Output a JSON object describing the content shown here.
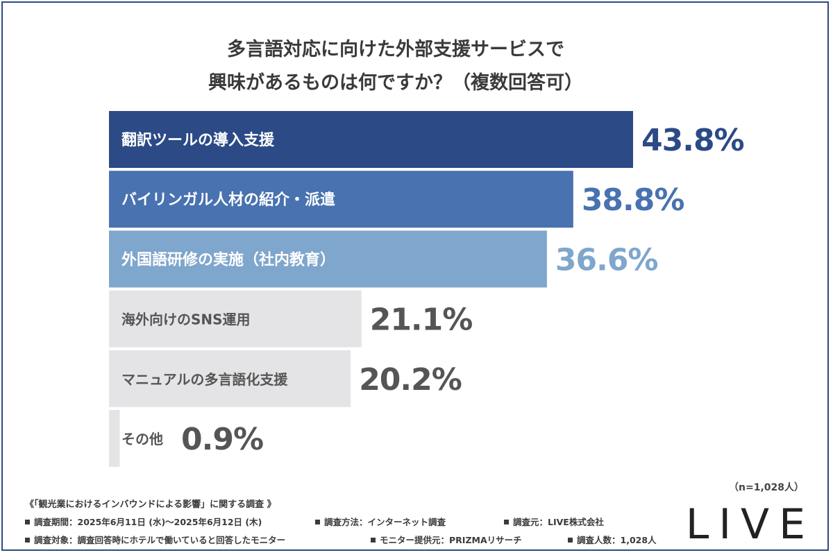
{
  "chart_data": {
    "type": "bar",
    "orientation": "horizontal",
    "title": "多言語対応に向けた外部支援サービスで 興味があるものは何ですか？（複数回答可）",
    "title_lines": [
      "多言語対応に向けた外部支援サービスで",
      "興味があるものは何ですか？（複数回答可）"
    ],
    "categories": [
      "翻訳ツールの導入支援",
      "バイリンガル人材の紹介・派遣",
      "外国語研修の実施（社内教育）",
      "海外向けのSNS運用",
      "マニュアルの多言語化支援",
      "その他"
    ],
    "values": [
      43.8,
      38.8,
      36.6,
      21.1,
      20.2,
      0.9
    ],
    "value_labels": [
      "43.8%",
      "38.8%",
      "36.6%",
      "21.1%",
      "20.2%",
      "0.9%"
    ],
    "unit": "%",
    "bar_colors": [
      "#2b4a86",
      "#4872b0",
      "#7fa6cc",
      "#e4e4e6",
      "#e4e4e6",
      "#e4e4e6"
    ],
    "label_colors": [
      "#2b4a86",
      "#4872b0",
      "#7fa6cc",
      "#555555",
      "#555555",
      "#555555"
    ],
    "bar_text_colors": [
      "#ffffff",
      "#ffffff",
      "#ffffff",
      "#555555",
      "#555555",
      "#555555"
    ],
    "xlim": [
      0,
      43.8
    ],
    "grid": false,
    "legend": "none"
  },
  "sample_note": "（n=1,028人）",
  "survey": {
    "title": "《「観光業におけるインバウンドによる影響」に関する調査 》",
    "row1": [
      "調査期間：2025年6月11日 (水)〜2025年6月12日 (木)",
      "調査方法：インターネット調査",
      "調査元：LIVE株式会社"
    ],
    "row2": [
      "調査対象：調査回答時にホテルで働いていると回答したモニター",
      "モニター提供元：PRIZMAリサーチ",
      "調査人数：1,028人"
    ]
  },
  "logo_text": "LIVE",
  "colors": {
    "frame": "#2e4a80",
    "dark_blue": "#2b4a86",
    "mid_blue": "#4872b0",
    "light_blue": "#7fa6cc",
    "gray_bar": "#e4e4e6"
  }
}
